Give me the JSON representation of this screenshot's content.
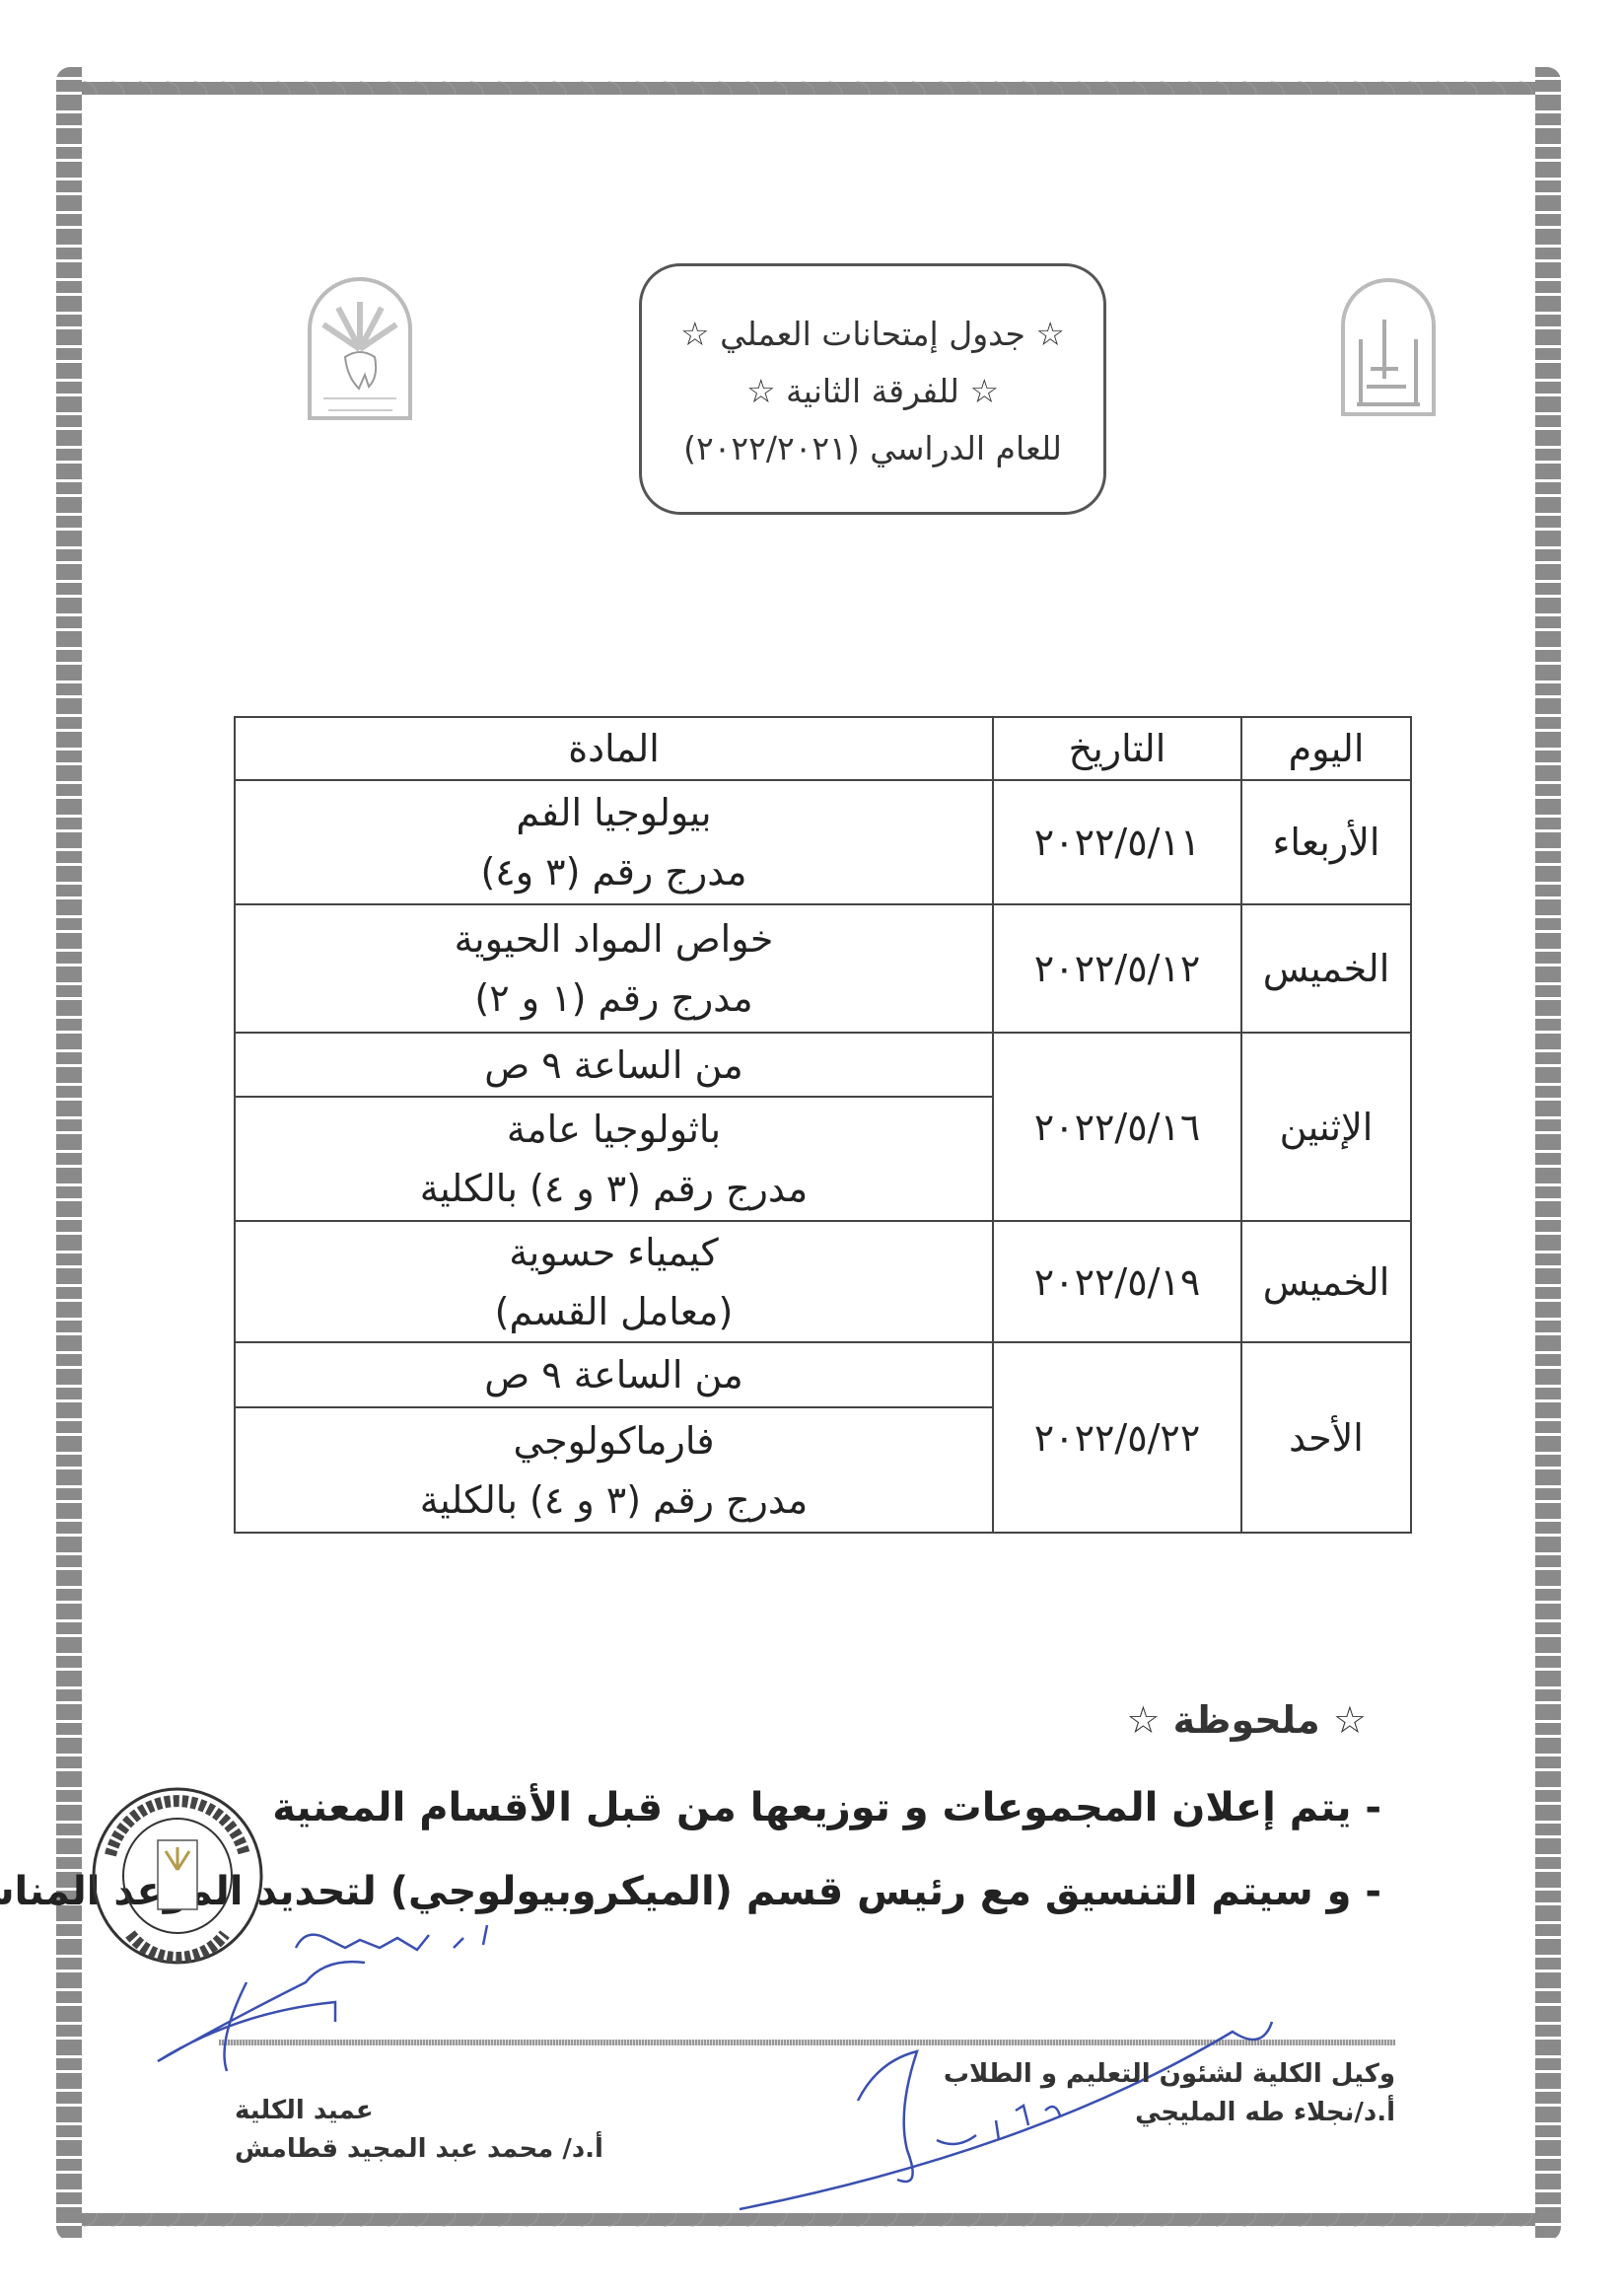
{
  "header": {
    "title_line1": "☆ جدول إمتحانات العملي ☆",
    "title_line2": "☆ للفرقة الثانية ☆",
    "title_line3": "للعام الدراسي (٢٠٢٢/٢٠٢١)",
    "logo_left": "Faculty of Dentistry - Assiut University",
    "logo_right": "جامعة أسيوط"
  },
  "table": {
    "headers": {
      "day": "اليوم",
      "date": "التاريخ",
      "subject": "المادة"
    },
    "rows": [
      {
        "day": "الأربعاء",
        "date": "٢٠٢٢/٥/١١",
        "time": "",
        "subject": "بيولوجيا الفم",
        "location": "مدرج رقم (٣ و٤)"
      },
      {
        "day": "الخميس",
        "date": "٢٠٢٢/٥/١٢",
        "time": "",
        "subject": "خواص المواد الحيوية",
        "location": "مدرج رقم (١ و ٢)"
      },
      {
        "day": "الإثنين",
        "date": "٢٠٢٢/٥/١٦",
        "time": "من الساعة ٩ ص",
        "subject": "باثولوجيا عامة",
        "location": "مدرج رقم (٣ و ٤) بالكلية"
      },
      {
        "day": "الخميس",
        "date": "٢٠٢٢/٥/١٩",
        "time": "",
        "subject": "كيمياء حسوية",
        "location": "(معامل القسم)"
      },
      {
        "day": "الأحد",
        "date": "٢٠٢٢/٥/٢٢",
        "time": "من الساعة ٩ ص",
        "subject": "فارماكولوجي",
        "location": "مدرج رقم (٣ و ٤) بالكلية"
      }
    ]
  },
  "notes": {
    "heading": "☆ ملحوظة ☆",
    "items": [
      "-  يتم إعلان المجموعات و توزيعها من قبل الأقسام المعنية",
      "-  و سيتم التنسيق مع رئيس قسم (الميكروبيولوجي) لتحديد الموعد المناسب"
    ]
  },
  "signatures": {
    "right_title": "وكيل الكلية لشئون التعليم و الطلاب",
    "right_name": "أ.د/نجلاء طه المليجي",
    "left_title": "عميد الكلية",
    "left_name": "أ.د/ محمد عبد المجيد قطامش",
    "stamp_text": "الصفحة الرسمية لكلية طب الأسنان - جامعة أسيوط"
  },
  "colors": {
    "ink": "#222222",
    "border": "#8a8a8a",
    "signature": "#3a4fb0"
  }
}
